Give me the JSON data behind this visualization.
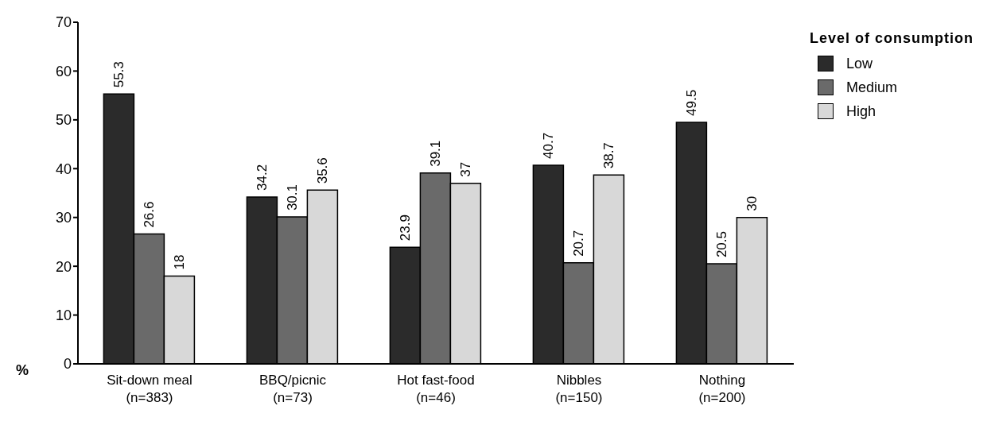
{
  "chart_data": {
    "type": "bar",
    "ylabel": "%",
    "legend_title": "Level of consumption",
    "legend": "top right",
    "grid": false,
    "data_labels": true,
    "categories": [
      "Sit-down meal\n(n=383)",
      "BBQ/picnic\n(n=73)",
      "Hot fast-food\n(n=46)",
      "Nibbles\n(n=150)",
      "Nothing\n(n=200)"
    ],
    "ylim": [
      0,
      70
    ],
    "yticks": [
      0,
      10,
      20,
      30,
      40,
      50,
      60,
      70
    ],
    "series": [
      {
        "name": "Low",
        "color": "#2b2b2b",
        "values": [
          55.3,
          34.2,
          23.9,
          40.7,
          49.5
        ]
      },
      {
        "name": "Medium",
        "color": "#6a6a6a",
        "values": [
          26.6,
          30.1,
          39.1,
          20.7,
          20.5
        ]
      },
      {
        "name": "High",
        "color": "#d8d8d8",
        "values": [
          18,
          35.6,
          37,
          38.7,
          30
        ]
      }
    ]
  }
}
